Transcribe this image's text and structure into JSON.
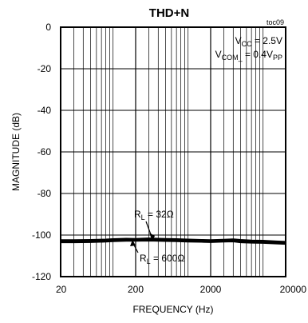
{
  "chart_data": {
    "type": "line",
    "title": "THD+N",
    "figure_code": "toc09",
    "xlabel": "FREQUENCY (Hz)",
    "ylabel": "MAGNITUDE (dB)",
    "x_scale": "log",
    "xlim": [
      20,
      20000
    ],
    "ylim": [
      -120,
      0
    ],
    "x_ticks": [
      20,
      200,
      2000,
      20000
    ],
    "x_tick_labels": [
      "20",
      "200",
      "2000",
      "20000"
    ],
    "y_ticks": [
      0,
      -20,
      -40,
      -60,
      -80,
      -100,
      -120
    ],
    "y_tick_labels": [
      "0",
      "-20",
      "-40",
      "-60",
      "-80",
      "-100",
      "-120"
    ],
    "grid": true,
    "conditions": {
      "vcc": {
        "main": "V",
        "sub": "CC",
        "rest": " = 2.5V"
      },
      "vcom": {
        "main": "V",
        "sub": "COM_",
        "rest": " = 0.4V",
        "sub2": "PP"
      }
    },
    "series": [
      {
        "name": "RL = 32Ω",
        "label": {
          "main": "R",
          "sub": "L",
          "rest": " = 32Ω"
        },
        "x": [
          20,
          30,
          50,
          80,
          100,
          150,
          200,
          300,
          400,
          500,
          700,
          1000,
          1500,
          2000,
          3000,
          4000,
          5000,
          7000,
          10000,
          15000,
          20000
        ],
        "y": [
          -102.6,
          -102.6,
          -102.5,
          -102.3,
          -102.1,
          -101.9,
          -102.0,
          -101.8,
          -101.9,
          -102.0,
          -102.1,
          -102.3,
          -102.5,
          -102.6,
          -102.4,
          -102.2,
          -102.5,
          -102.8,
          -102.9,
          -103.2,
          -103.4
        ]
      },
      {
        "name": "RL = 600Ω",
        "label": {
          "main": "R",
          "sub": "L",
          "rest": " = 600Ω"
        },
        "x": [
          20,
          30,
          50,
          80,
          100,
          150,
          200,
          300,
          400,
          500,
          700,
          1000,
          1500,
          2000,
          3000,
          4000,
          5000,
          7000,
          10000,
          15000,
          20000
        ],
        "y": [
          -103.3,
          -103.3,
          -103.2,
          -103.0,
          -102.8,
          -102.6,
          -102.6,
          -102.5,
          -102.6,
          -102.7,
          -102.8,
          -103.0,
          -103.1,
          -103.2,
          -103.0,
          -102.9,
          -103.3,
          -103.5,
          -103.6,
          -103.9,
          -104.1
        ]
      }
    ]
  }
}
